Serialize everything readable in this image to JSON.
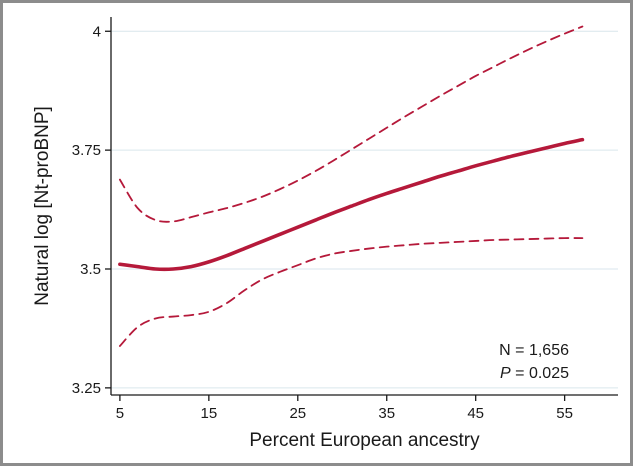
{
  "chart_data": {
    "type": "line",
    "xlabel": "Percent European ancestry",
    "ylabel": "Natural log [Nt-proBNP]",
    "xlim": [
      4,
      61
    ],
    "ylim": [
      3.235,
      4.03
    ],
    "x_ticks": [
      5,
      15,
      25,
      35,
      45,
      55
    ],
    "y_ticks": [
      3.25,
      3.5,
      3.75,
      4
    ],
    "y_tick_labels": [
      "3.25",
      "3.5",
      "3.75",
      "4"
    ],
    "grid": "horizontal",
    "series": [
      {
        "role": "estimate",
        "style": "solid",
        "color": "#b5193a",
        "x": [
          5,
          7,
          9,
          11,
          13,
          15,
          17,
          19,
          21,
          23,
          25,
          27,
          29,
          31,
          33,
          35,
          37,
          39,
          41,
          43,
          45,
          47,
          49,
          51,
          53,
          55,
          57
        ],
        "y": [
          3.51,
          3.505,
          3.5,
          3.5,
          3.505,
          3.515,
          3.528,
          3.543,
          3.558,
          3.573,
          3.588,
          3.603,
          3.618,
          3.632,
          3.646,
          3.659,
          3.671,
          3.683,
          3.695,
          3.706,
          3.717,
          3.727,
          3.737,
          3.746,
          3.755,
          3.764,
          3.772
        ]
      },
      {
        "role": "upper-ci",
        "style": "dashed",
        "color": "#b5193a",
        "x": [
          5,
          7,
          9,
          11,
          13,
          15,
          17,
          19,
          21,
          23,
          25,
          27,
          29,
          31,
          33,
          35,
          37,
          39,
          41,
          43,
          45,
          47,
          49,
          51,
          53,
          55,
          57
        ],
        "y": [
          3.688,
          3.628,
          3.603,
          3.6,
          3.609,
          3.619,
          3.628,
          3.639,
          3.652,
          3.668,
          3.686,
          3.706,
          3.728,
          3.751,
          3.774,
          3.797,
          3.82,
          3.842,
          3.864,
          3.885,
          3.906,
          3.925,
          3.944,
          3.962,
          3.979,
          3.995,
          4.01
        ]
      },
      {
        "role": "lower-ci",
        "style": "dashed",
        "color": "#b5193a",
        "x": [
          5,
          7,
          9,
          11,
          13,
          15,
          17,
          19,
          21,
          23,
          25,
          27,
          29,
          31,
          33,
          35,
          37,
          39,
          41,
          43,
          45,
          47,
          49,
          51,
          53,
          55,
          57
        ],
        "y": [
          3.338,
          3.378,
          3.396,
          3.4,
          3.403,
          3.41,
          3.428,
          3.455,
          3.478,
          3.494,
          3.508,
          3.522,
          3.532,
          3.538,
          3.543,
          3.547,
          3.55,
          3.553,
          3.555,
          3.557,
          3.559,
          3.561,
          3.562,
          3.563,
          3.564,
          3.565,
          3.565
        ]
      }
    ],
    "annotations": {
      "n_text": "N = 1,656",
      "p_symbol": "P",
      "p_text": " = 0.025"
    }
  }
}
